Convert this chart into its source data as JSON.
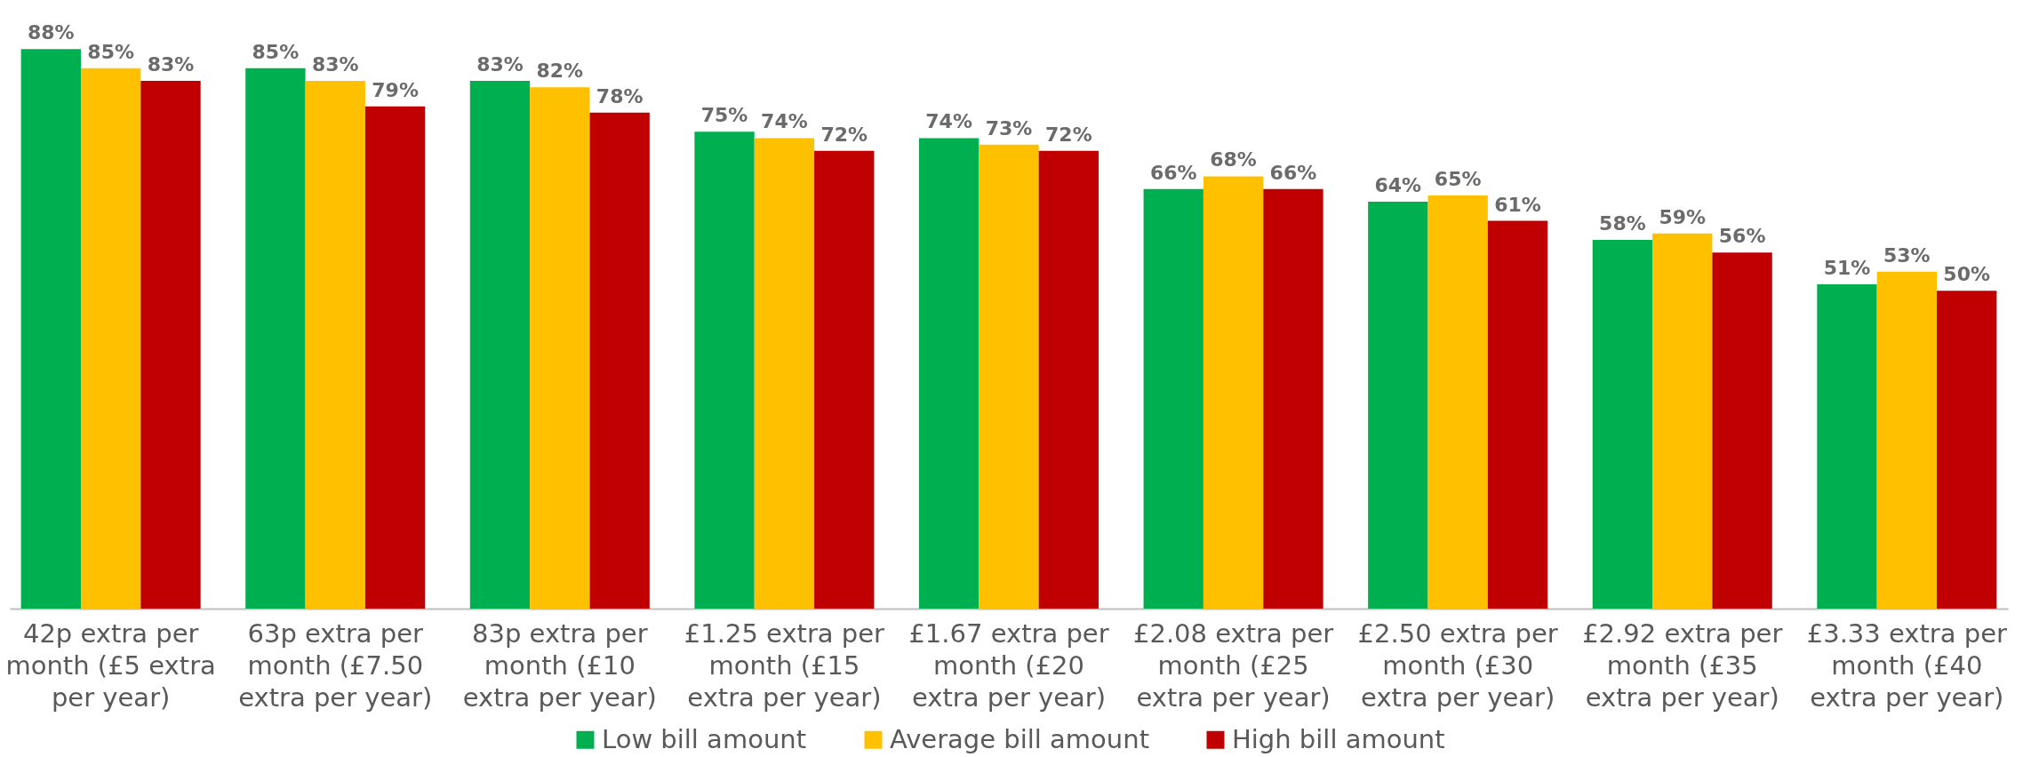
{
  "chart_data": {
    "type": "bar",
    "categories": [
      "42p extra per month (£5 extra per year)",
      "63p extra per month (£7.50 extra per year)",
      "83p extra per month (£10 extra per year)",
      "£1.25 extra per month (£15 extra per year)",
      "£1.67 extra per month (£20 extra per year)",
      "£2.08 extra per month (£25 extra per year)",
      "£2.50 extra per month (£30 extra per year)",
      "£2.92 extra per month (£35 extra per year)",
      "£3.33 extra per month (£40 extra per year)"
    ],
    "series": [
      {
        "name": "Low bill amount",
        "color": "#00b050",
        "values": [
          88,
          85,
          83,
          75,
          74,
          66,
          64,
          58,
          51
        ],
        "value_labels": [
          "88%",
          "85%",
          "83%",
          "75%",
          "74%",
          "66%",
          "64%",
          "58%",
          "51%"
        ]
      },
      {
        "name": "Average bill amount",
        "color": "#ffc000",
        "values": [
          85,
          83,
          82,
          74,
          73,
          68,
          65,
          59,
          53
        ],
        "value_labels": [
          "85%",
          "83%",
          "82%",
          "74%",
          "73%",
          "68%",
          "65%",
          "59%",
          "53%"
        ]
      },
      {
        "name": "High bill amount",
        "color": "#c00000",
        "values": [
          83,
          79,
          78,
          72,
          72,
          66,
          61,
          56,
          50
        ],
        "value_labels": [
          "83%",
          "79%",
          "78%",
          "72%",
          "72%",
          "66%",
          "61%",
          "56%",
          "50%"
        ]
      }
    ],
    "legend": "bottom"
  }
}
